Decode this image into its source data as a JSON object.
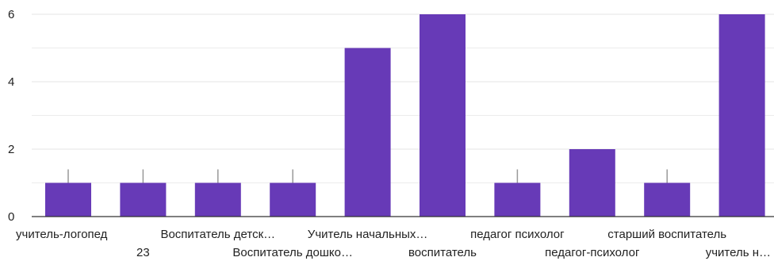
{
  "chart_data": {
    "type": "bar",
    "categories": [
      "учитель-логопед",
      "23",
      "Воспитатель детск…",
      "Воспитатель дошко…",
      "Учитель начальных…",
      "воспитатель",
      "педагог психолог",
      "педагог-психолог",
      "старший воспитатель",
      "учитель н…"
    ],
    "values": [
      1,
      1,
      1,
      1,
      5,
      6,
      1,
      2,
      1,
      6
    ],
    "y_ticks": [
      "0",
      "2",
      "4",
      "6"
    ],
    "ylim": [
      0,
      6
    ],
    "grid": true,
    "title": "",
    "xlabel": "",
    "ylabel": "",
    "colors": {
      "bar": "#673ab7",
      "grid": "#e6e6e6",
      "axis": "#333333",
      "marker": "#999999"
    }
  }
}
